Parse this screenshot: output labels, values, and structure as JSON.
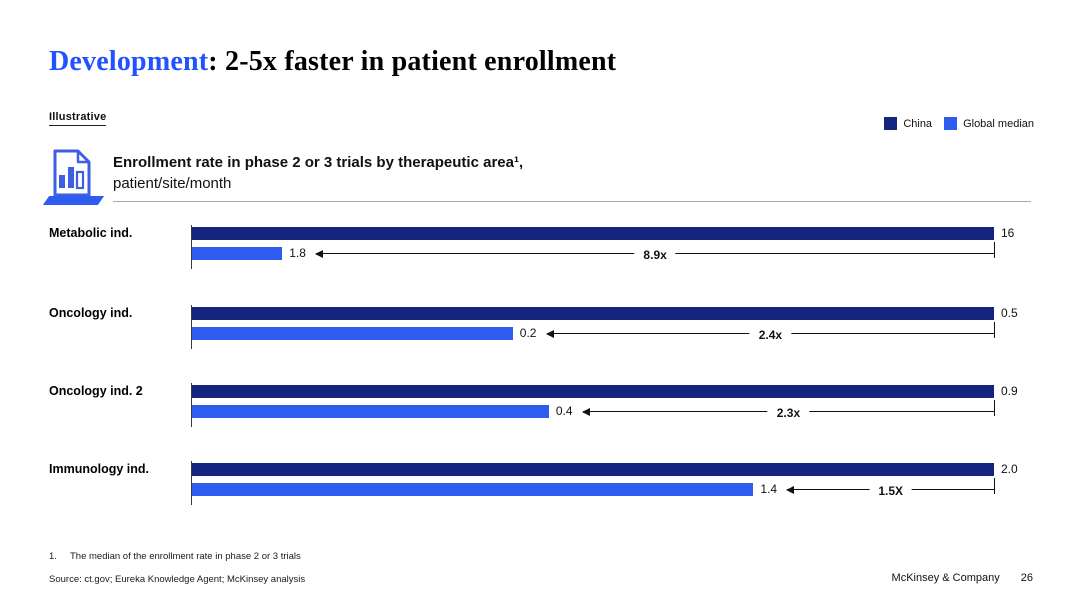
{
  "slide": {
    "title": {
      "highlight": "Development",
      "rest": ": 2-5x faster in patient enrollment"
    },
    "tag": "Illustrative",
    "legend": {
      "items": [
        {
          "label": "China",
          "color": "#13257E"
        },
        {
          "label": "Global median",
          "color": "#2E5CF0"
        }
      ]
    },
    "chart_header": {
      "icon": "bar-chart-document-icon",
      "line1": "Enrollment rate in phase 2 or 3 trials by therapeutic area¹,",
      "line2": "patient/site/month"
    },
    "footnote": {
      "num": "1.",
      "text": "The median of the enrollment rate in phase 2 or 3 trials"
    },
    "source": "Source: ct.gov; Eureka Knowledge Agent; McKinsey analysis",
    "footer": {
      "brand": "McKinsey & Company",
      "page": "26"
    }
  },
  "chart_data": {
    "type": "bar",
    "orientation": "horizontal",
    "title": "Enrollment rate in phase 2 or 3 trials by therapeutic area, patient/site/month",
    "layout_hint": "each row normalized: China bar spans full width; Global median bar scaled to China value; multiplier arrow from Global bar end to row right edge",
    "categories": [
      "Metabolic ind.",
      "Oncology ind.",
      "Oncology ind. 2",
      "Immunology ind."
    ],
    "series": [
      {
        "name": "China",
        "color": "#13257E",
        "values": [
          16,
          0.5,
          0.9,
          2.0
        ]
      },
      {
        "name": "Global median",
        "color": "#2E5CF0",
        "values": [
          1.8,
          0.2,
          0.4,
          1.4
        ]
      }
    ],
    "multipliers": [
      "8.9x",
      "2.4x",
      "2.3x",
      "1.5X"
    ],
    "rows": [
      {
        "label": "Metabolic ind.",
        "china_label": "16",
        "global_label": "1.8",
        "multiplier": "8.9x",
        "global_pct": 11.25
      },
      {
        "label": "Oncology ind.",
        "china_label": "0.5",
        "global_label": "0.2",
        "multiplier": "2.4x",
        "global_pct": 40
      },
      {
        "label": "Oncology ind. 2",
        "china_label": "0.9",
        "global_label": "0.4",
        "multiplier": "2.3x",
        "global_pct": 44.5
      },
      {
        "label": "Immunology ind.",
        "china_label": "2.0",
        "global_label": "1.4",
        "multiplier": "1.5X",
        "global_pct": 70
      }
    ]
  }
}
